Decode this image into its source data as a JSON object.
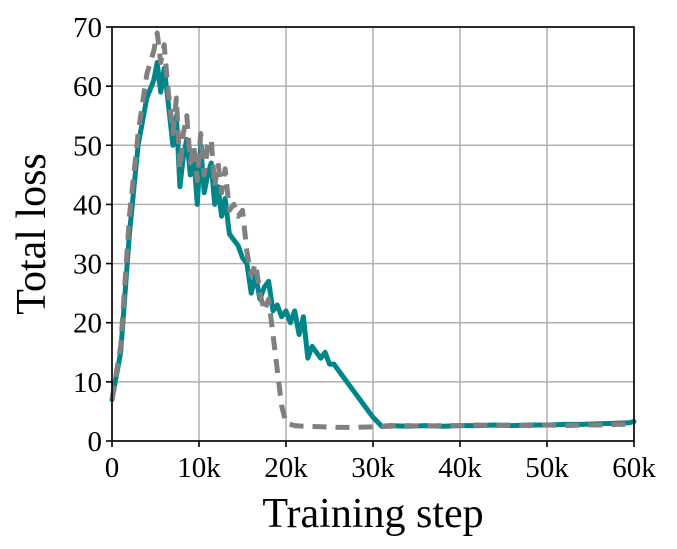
{
  "chart_data": {
    "type": "line",
    "xlabel": "Training step",
    "ylabel": "Total loss",
    "xlim": [
      0,
      60000
    ],
    "ylim": [
      0,
      70
    ],
    "x_ticks": [
      0,
      10000,
      20000,
      30000,
      40000,
      50000,
      60000
    ],
    "x_tick_labels": [
      "0",
      "10k",
      "20k",
      "30k",
      "40k",
      "50k",
      "60k"
    ],
    "y_ticks": [
      0,
      10,
      20,
      30,
      40,
      50,
      60,
      70
    ],
    "y_tick_labels": [
      "0",
      "10",
      "20",
      "30",
      "40",
      "50",
      "60",
      "70"
    ],
    "grid": true,
    "legend": null,
    "series": [
      {
        "color": "#00868a",
        "style": "solid",
        "x": [
          0,
          1000,
          2000,
          3000,
          4000,
          4800,
          5200,
          5600,
          6000,
          6400,
          7000,
          7400,
          7800,
          8200,
          8600,
          9000,
          9400,
          9800,
          10200,
          10600,
          11000,
          11400,
          11800,
          12200,
          12600,
          13000,
          13500,
          14000,
          14500,
          15000,
          15500,
          16000,
          16500,
          17000,
          17500,
          18000,
          18500,
          19000,
          19500,
          20000,
          20500,
          21000,
          21500,
          22000,
          22500,
          23000,
          23500,
          24000,
          24500,
          25000,
          25500,
          26000,
          27000,
          28000,
          29000,
          30000,
          31000,
          32000,
          34000,
          36000,
          38000,
          40000,
          42000,
          44000,
          46000,
          48000,
          50000,
          52000,
          54000,
          56000,
          58000,
          59500,
          60000
        ],
        "y": [
          7,
          15,
          35,
          50,
          58,
          61,
          64,
          59,
          63,
          58,
          50,
          55,
          43,
          48,
          51,
          45,
          48,
          40,
          50,
          42,
          45,
          47,
          40,
          43,
          38,
          41,
          35,
          34,
          33,
          31,
          30,
          25,
          28,
          24,
          26,
          27,
          22,
          23,
          21,
          22,
          20,
          22,
          18,
          21,
          14,
          16,
          15,
          14,
          15,
          13,
          13,
          12,
          10,
          8,
          6,
          4,
          2.5,
          2.6,
          2.5,
          2.6,
          2.5,
          2.6,
          2.6,
          2.7,
          2.6,
          2.7,
          2.7,
          2.8,
          2.8,
          2.9,
          3.0,
          3.1,
          3.3
        ]
      },
      {
        "color": "#808080",
        "style": "dashed",
        "x": [
          0,
          1000,
          2000,
          3000,
          4000,
          4800,
          5200,
          5600,
          6000,
          6400,
          7000,
          7400,
          7800,
          8200,
          8600,
          9000,
          9400,
          9800,
          10200,
          10600,
          11000,
          11400,
          11800,
          12200,
          12600,
          13000,
          13500,
          14000,
          14500,
          15000,
          15500,
          16000,
          16500,
          17000,
          17500,
          18000,
          18500,
          19000,
          19500,
          20000,
          21000,
          22000,
          24000,
          26000,
          28000,
          30000,
          32000,
          34000,
          36000,
          38000,
          40000,
          42000,
          44000,
          46000,
          48000,
          50000,
          52000,
          54000,
          56000,
          58000,
          60000
        ],
        "y": [
          7,
          16,
          38,
          52,
          62,
          66,
          69,
          64,
          67,
          60,
          52,
          58,
          46,
          52,
          55,
          47,
          50,
          44,
          52,
          45,
          50,
          51,
          43,
          47,
          42,
          46,
          39,
          40,
          38,
          39,
          32,
          28,
          30,
          25,
          22,
          24,
          18,
          12,
          6,
          3,
          2.6,
          2.5,
          2.4,
          2.3,
          2.3,
          2.4,
          2.5,
          2.6,
          2.5,
          2.6,
          2.6,
          2.7,
          2.6,
          2.7,
          2.6,
          2.7,
          2.6,
          2.7,
          2.7,
          2.8,
          2.8
        ]
      }
    ]
  }
}
